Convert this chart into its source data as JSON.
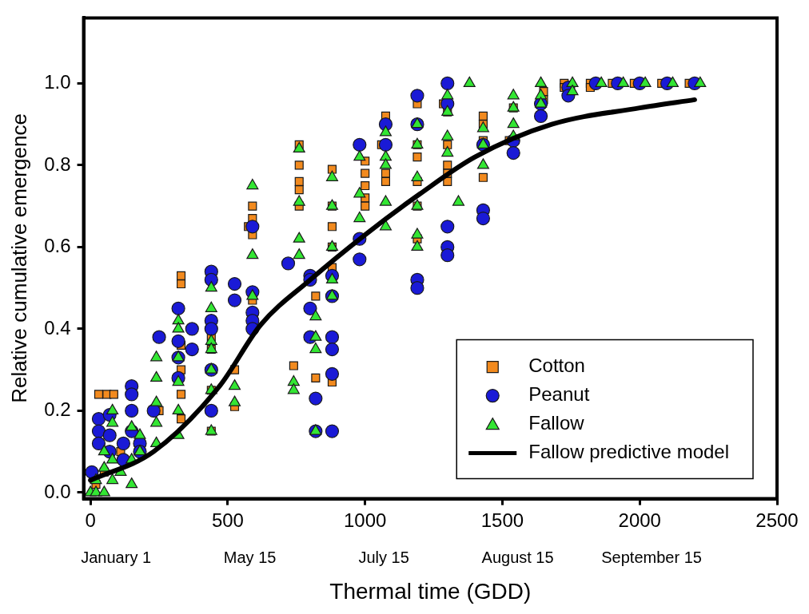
{
  "chart_data": {
    "type": "scatter",
    "xlabel": "Thermal time (GDD)",
    "ylabel": "Relative cumulative emergence",
    "xlim": [
      -25,
      2500
    ],
    "xticks": [
      0,
      500,
      1000,
      1500,
      2000,
      2500
    ],
    "ylim": [
      -0.015,
      1.16
    ],
    "yticks": [
      {
        "value": 0,
        "label": "0.0"
      },
      {
        "value": 0.2,
        "label": "0.2"
      },
      {
        "value": 0.4,
        "label": "0.4"
      },
      {
        "value": 0.6,
        "label": "0.6"
      },
      {
        "value": 0.8,
        "label": "0.8"
      },
      {
        "value": 1,
        "label": "1.0"
      }
    ],
    "annotations": [
      "January 1",
      "May 15",
      "July 15",
      "August 15",
      "September 15"
    ],
    "grid": false,
    "legend": "bottom right",
    "series": [
      {
        "name": "Cotton",
        "marker": "square",
        "color": "#f28a1e",
        "x": [
          20,
          50,
          110,
          30,
          60,
          85,
          250,
          330,
          330,
          330,
          330,
          330,
          330,
          440,
          440,
          440,
          440,
          525,
          525,
          590,
          590,
          575,
          590,
          590,
          740,
          760,
          760,
          760,
          760,
          760,
          820,
          820,
          880,
          880,
          880,
          880,
          880,
          880,
          1000,
          1000,
          1000,
          1000,
          1000,
          1075,
          1060,
          1075,
          1075,
          1190,
          1190,
          1190,
          1190,
          1190,
          1190,
          1285,
          1300,
          1300,
          1300,
          1300,
          1300,
          1430,
          1430,
          1430,
          1430,
          1540,
          1525,
          1650,
          1650,
          1725,
          1725,
          1820,
          1820,
          1900,
          1980,
          2080,
          2180
        ],
        "values": [
          0.02,
          0.05,
          0.1,
          0.24,
          0.24,
          0.24,
          0.2,
          0.53,
          0.51,
          0.36,
          0.3,
          0.18,
          0.24,
          0.35,
          0.25,
          0.38,
          0.15,
          0.3,
          0.21,
          0.7,
          0.67,
          0.65,
          0.63,
          0.47,
          0.31,
          0.85,
          0.8,
          0.76,
          0.74,
          0.7,
          0.48,
          0.28,
          0.79,
          0.7,
          0.65,
          0.6,
          0.55,
          0.27,
          0.81,
          0.78,
          0.75,
          0.72,
          0.7,
          0.92,
          0.85,
          0.78,
          0.76,
          0.95,
          0.85,
          0.82,
          0.76,
          0.7,
          0.62,
          0.95,
          0.93,
          0.85,
          0.8,
          0.78,
          0.76,
          0.92,
          0.9,
          0.86,
          0.77,
          0.94,
          0.86,
          0.98,
          0.96,
          1.0,
          0.99,
          1.0,
          0.99,
          1.0,
          1.0,
          1.0,
          1.0
        ]
      },
      {
        "name": "Peanut",
        "marker": "circle",
        "color": "#1a1ad6",
        "x": [
          5,
          30,
          30,
          30,
          70,
          70,
          70,
          120,
          120,
          150,
          150,
          150,
          150,
          180,
          180,
          230,
          250,
          320,
          320,
          320,
          320,
          370,
          370,
          440,
          440,
          440,
          440,
          440,
          440,
          525,
          525,
          590,
          590,
          590,
          590,
          590,
          720,
          800,
          800,
          800,
          800,
          820,
          820,
          880,
          880,
          880,
          880,
          880,
          880,
          980,
          980,
          980,
          1075,
          1075,
          1190,
          1190,
          1190,
          1190,
          1300,
          1300,
          1300,
          1300,
          1300,
          1430,
          1430,
          1430,
          1540,
          1540,
          1640,
          1640,
          1740,
          1740,
          1840,
          1920,
          2000,
          2100,
          2200
        ],
        "values": [
          0.05,
          0.18,
          0.15,
          0.12,
          0.19,
          0.14,
          0.1,
          0.12,
          0.08,
          0.26,
          0.24,
          0.2,
          0.15,
          0.12,
          0.1,
          0.2,
          0.38,
          0.45,
          0.37,
          0.33,
          0.28,
          0.4,
          0.35,
          0.54,
          0.52,
          0.42,
          0.4,
          0.3,
          0.2,
          0.51,
          0.47,
          0.65,
          0.49,
          0.44,
          0.42,
          0.4,
          0.56,
          0.53,
          0.52,
          0.45,
          0.38,
          0.23,
          0.15,
          0.53,
          0.48,
          0.38,
          0.35,
          0.29,
          0.15,
          0.85,
          0.62,
          0.57,
          0.9,
          0.85,
          0.97,
          0.9,
          0.52,
          0.5,
          1.0,
          0.95,
          0.65,
          0.6,
          0.58,
          0.85,
          0.69,
          0.67,
          0.86,
          0.83,
          0.95,
          0.92,
          0.99,
          0.97,
          1.0,
          1.0,
          1.0,
          1.0,
          1.0
        ]
      },
      {
        "name": "Fallow",
        "marker": "triangle",
        "color": "#33e633",
        "x": [
          0,
          20,
          20,
          50,
          50,
          50,
          80,
          80,
          80,
          80,
          110,
          150,
          150,
          150,
          180,
          180,
          240,
          240,
          240,
          240,
          240,
          320,
          320,
          320,
          320,
          320,
          320,
          440,
          440,
          440,
          440,
          440,
          440,
          440,
          525,
          525,
          590,
          590,
          590,
          740,
          740,
          760,
          760,
          760,
          760,
          820,
          820,
          820,
          820,
          880,
          880,
          880,
          880,
          880,
          980,
          980,
          980,
          1075,
          1075,
          1075,
          1075,
          1075,
          1190,
          1190,
          1190,
          1190,
          1190,
          1190,
          1300,
          1300,
          1300,
          1300,
          1340,
          1380,
          1430,
          1430,
          1430,
          1540,
          1540,
          1540,
          1540,
          1640,
          1640,
          1640,
          1755,
          1755,
          1860,
          1940,
          2020,
          2120,
          2220
        ],
        "values": [
          0.0,
          0.0,
          0.03,
          0.06,
          0.1,
          0.0,
          0.17,
          0.2,
          0.08,
          0.03,
          0.05,
          0.16,
          0.08,
          0.02,
          0.14,
          0.1,
          0.33,
          0.28,
          0.22,
          0.17,
          0.12,
          0.42,
          0.4,
          0.33,
          0.27,
          0.2,
          0.14,
          0.5,
          0.45,
          0.37,
          0.35,
          0.3,
          0.25,
          0.15,
          0.26,
          0.22,
          0.75,
          0.58,
          0.48,
          0.27,
          0.25,
          0.84,
          0.71,
          0.62,
          0.58,
          0.43,
          0.38,
          0.35,
          0.15,
          0.77,
          0.7,
          0.6,
          0.52,
          0.48,
          0.82,
          0.73,
          0.67,
          0.88,
          0.82,
          0.8,
          0.71,
          0.65,
          0.9,
          0.85,
          0.77,
          0.7,
          0.63,
          0.6,
          0.97,
          0.93,
          0.87,
          0.83,
          0.71,
          1.0,
          0.89,
          0.85,
          0.8,
          0.97,
          0.94,
          0.9,
          0.87,
          1.0,
          0.97,
          0.95,
          1.0,
          0.98,
          1.0,
          1.0,
          1.0,
          1.0,
          1.0
        ]
      },
      {
        "name": "Fallow predictive model",
        "type": "line",
        "marker": "none",
        "line_style": "solid",
        "color": "#000000",
        "x": [
          0,
          230,
          470,
          620,
          800,
          1000,
          1200,
          1400,
          1680,
          2000,
          2200
        ],
        "values": [
          0.03,
          0.1,
          0.26,
          0.41,
          0.52,
          0.63,
          0.73,
          0.82,
          0.9,
          0.94,
          0.96
        ]
      }
    ]
  }
}
